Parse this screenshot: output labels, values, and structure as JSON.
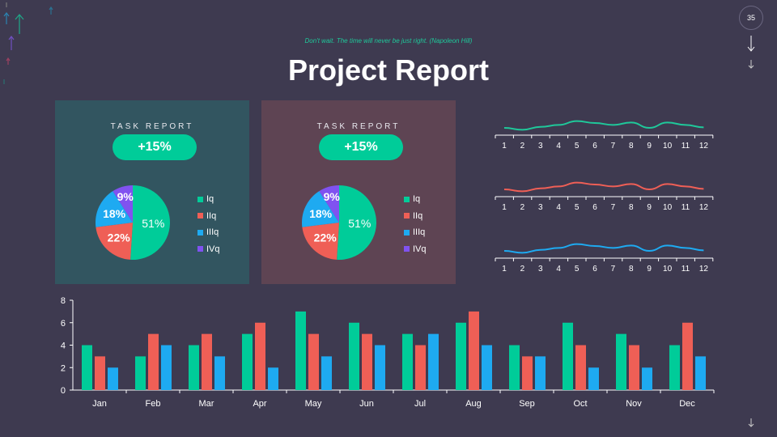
{
  "header": {
    "quote": "Don't wait. The time will never be just right. (Napoleon Hill)",
    "title": "Project Report",
    "page_number": "35"
  },
  "colors": {
    "q1": "#00cc99",
    "q2": "#ef5f56",
    "q3": "#1eaaf1",
    "q4": "#8052f0",
    "panel1": "#325560",
    "panel2": "#5e4453"
  },
  "panels": [
    {
      "title": "TASK REPORT",
      "badge": "+15%"
    },
    {
      "title": "TASK REPORT",
      "badge": "+15%"
    }
  ],
  "chart_data": [
    {
      "type": "pie",
      "labels": [
        "Iq",
        "IIq",
        "IIIq",
        "IVq"
      ],
      "values": [
        51,
        22,
        18,
        9
      ],
      "data_labels": [
        "51%",
        "22%",
        "18%",
        "9%"
      ],
      "legend": "right"
    },
    {
      "type": "pie",
      "labels": [
        "Iq",
        "IIq",
        "IIIq",
        "IVq"
      ],
      "values": [
        51,
        22,
        18,
        9
      ],
      "data_labels": [
        "51%",
        "22%",
        "18%",
        "9%"
      ],
      "legend": "right"
    },
    {
      "type": "line",
      "x": [
        "1",
        "2",
        "3",
        "4",
        "5",
        "6",
        "7",
        "8",
        "9",
        "10",
        "11",
        "12"
      ],
      "values": [
        3,
        2.6,
        3.2,
        3.6,
        4.4,
        4,
        3.6,
        4.1,
        3,
        4.1,
        3.6,
        3.1
      ],
      "color": "#1fc89a"
    },
    {
      "type": "line",
      "x": [
        "1",
        "2",
        "3",
        "4",
        "5",
        "6",
        "7",
        "8",
        "9",
        "10",
        "11",
        "12"
      ],
      "values": [
        3,
        2.6,
        3.2,
        3.6,
        4.4,
        4,
        3.6,
        4.1,
        3,
        4.1,
        3.6,
        3.1
      ],
      "color": "#ef5f56"
    },
    {
      "type": "line",
      "x": [
        "1",
        "2",
        "3",
        "4",
        "5",
        "6",
        "7",
        "8",
        "9",
        "10",
        "11",
        "12"
      ],
      "values": [
        3,
        2.6,
        3.2,
        3.6,
        4.4,
        4,
        3.6,
        4.1,
        3,
        4.1,
        3.6,
        3.1
      ],
      "color": "#1eaaf1"
    },
    {
      "type": "bar",
      "categories": [
        "Jan",
        "Feb",
        "Mar",
        "Apr",
        "May",
        "Jun",
        "Jul",
        "Aug",
        "Sep",
        "Oct",
        "Nov",
        "Dec"
      ],
      "series": [
        {
          "values": [
            4,
            3,
            4,
            5,
            7,
            6,
            5,
            6,
            4,
            6,
            5,
            4
          ],
          "color": "#00cc99"
        },
        {
          "values": [
            3,
            5,
            5,
            6,
            5,
            5,
            4,
            7,
            3,
            4,
            4,
            6
          ],
          "color": "#ef5f56"
        },
        {
          "values": [
            2,
            4,
            3,
            2,
            3,
            4,
            5,
            4,
            3,
            2,
            2,
            3
          ],
          "color": "#1eaaf1"
        }
      ],
      "ylim": [
        0,
        8
      ],
      "yticks": [
        "0",
        "2",
        "4",
        "6",
        "8"
      ],
      "grid": false
    }
  ]
}
